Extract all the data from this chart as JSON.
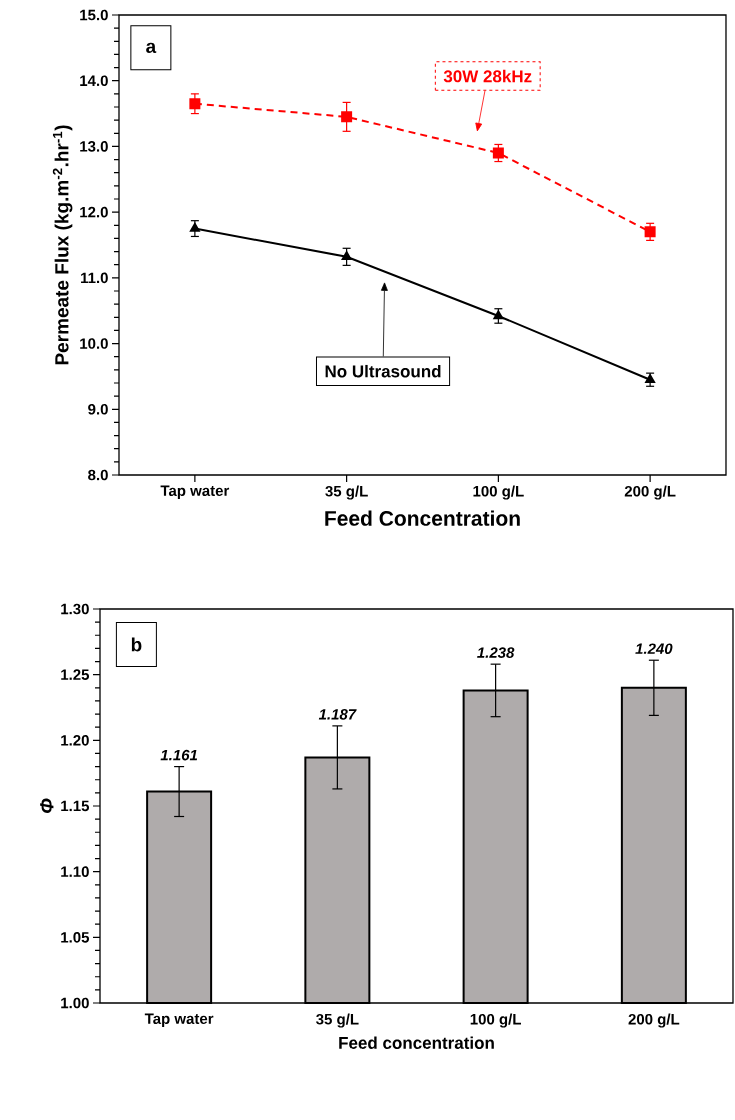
{
  "chart_data": [
    {
      "type": "line",
      "categories": [
        "Tap water",
        "35 g/L",
        "100 g/L",
        "200 g/L"
      ],
      "series": [
        {
          "name": "No Ultrasound",
          "color": "#000000",
          "values": [
            11.75,
            11.32,
            10.42,
            9.45
          ],
          "errors": [
            0.12,
            0.13,
            0.11,
            0.1
          ],
          "marker": "triangle",
          "line_style": "solid"
        },
        {
          "name": "30W 28kHz",
          "color": "#ff0000",
          "values": [
            13.65,
            13.45,
            12.9,
            11.7
          ],
          "errors": [
            0.15,
            0.22,
            0.13,
            0.13
          ],
          "marker": "square",
          "line_style": "dashed"
        }
      ],
      "ylim": [
        8,
        15
      ],
      "yticks": [
        {
          "value": 8,
          "label": "8.0"
        },
        {
          "value": 9,
          "label": "9.0"
        },
        {
          "value": 10,
          "label": "10.0"
        },
        {
          "value": 11,
          "label": "11.0"
        },
        {
          "value": 12,
          "label": "12.0"
        },
        {
          "value": 13,
          "label": "13.0"
        },
        {
          "value": 14,
          "label": "14.0"
        },
        {
          "value": 15,
          "label": "15.0"
        }
      ],
      "xlabel": "Feed Concentration",
      "ylabel": "Permeate Flux (kg.m$^{-2}$.hr$^{-1}$)",
      "annotations": [
        "a"
      ]
    },
    {
      "type": "bar",
      "categories": [
        "Tap water",
        "35 g/L",
        "100 g/L",
        "200 g/L"
      ],
      "values": [
        1.161,
        1.187,
        1.238,
        1.24
      ],
      "errors": [
        0.019,
        0.024,
        0.02,
        0.021
      ],
      "color": "#afabab",
      "value_labels": [
        "1.161",
        "1.187",
        "1.238",
        "1.240"
      ],
      "ylim": [
        1.0,
        1.3
      ],
      "yticks": [
        {
          "value": 1.0,
          "label": "1.00"
        },
        {
          "value": 1.05,
          "label": "1.05"
        },
        {
          "value": 1.1,
          "label": "1.10"
        },
        {
          "value": 1.15,
          "label": "1.15"
        },
        {
          "value": 1.2,
          "label": "1.20"
        },
        {
          "value": 1.25,
          "label": "1.25"
        },
        {
          "value": 1.3,
          "label": "1.30"
        }
      ],
      "xlabel": "Feed concentration",
      "ylabel": "Φ",
      "annotations": [
        "b"
      ]
    }
  ]
}
